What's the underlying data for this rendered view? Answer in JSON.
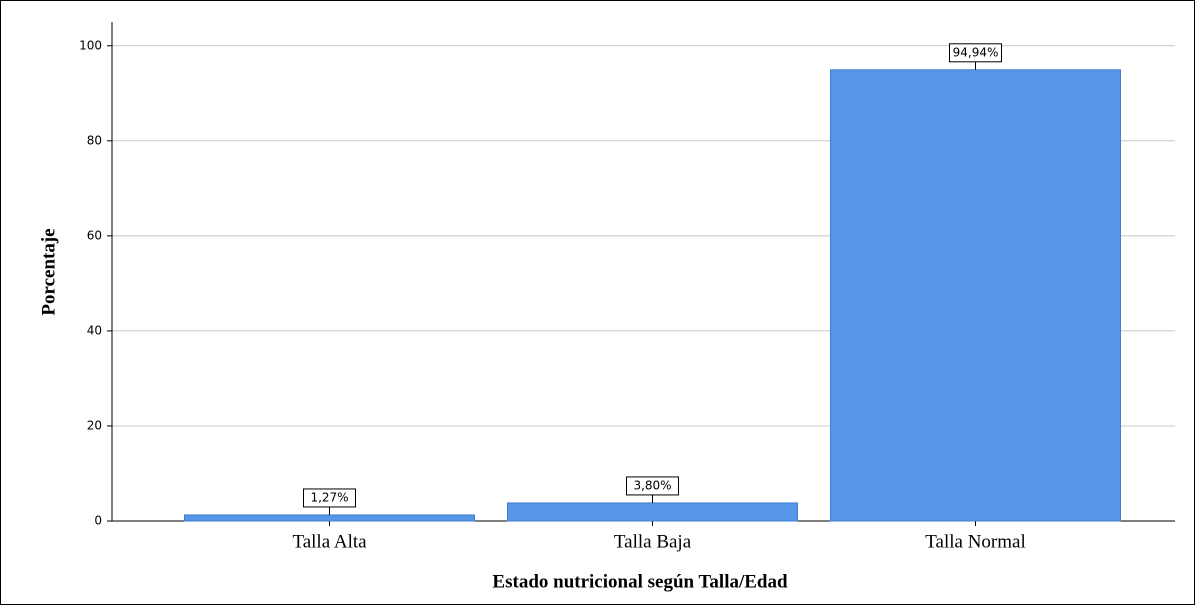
{
  "chart_data": {
    "type": "bar",
    "x_label": "Estado nutricional según Talla/Edad",
    "y_label": "Porcentaje",
    "categories": [
      "Talla Alta",
      "Talla Baja",
      "Talla Normal"
    ],
    "values": [
      1.27,
      3.8,
      94.94
    ],
    "value_labels": [
      "1,27%",
      "3,80%",
      "94,94%"
    ],
    "color": "#5596e6",
    "ylim": [
      0,
      105
    ],
    "yticks": [
      0,
      20,
      40,
      60,
      80,
      100
    ],
    "grid": true
  }
}
